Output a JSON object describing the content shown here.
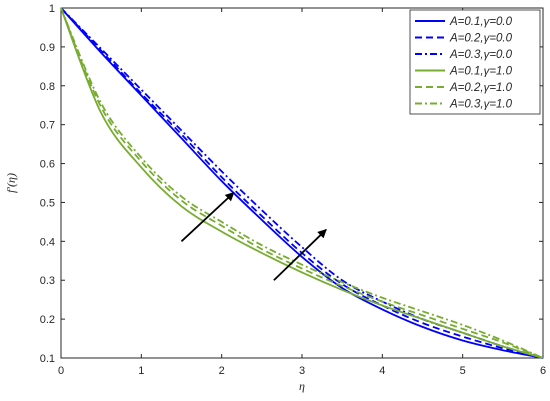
{
  "chart_data": {
    "type": "line",
    "xlabel": "η",
    "ylabel": "f′(η)",
    "xlim": [
      0,
      6
    ],
    "ylim": [
      0.1,
      1
    ],
    "x_ticks": [
      "0",
      "1",
      "2",
      "3",
      "4",
      "5",
      "6"
    ],
    "y_ticks": [
      "0.1",
      "0.2",
      "0.3",
      "0.4",
      "0.5",
      "0.6",
      "0.7",
      "0.8",
      "0.9",
      "1"
    ],
    "grid": false,
    "legend_position": "top-right",
    "x": [
      0,
      0.5,
      1,
      1.5,
      2,
      2.5,
      3,
      3.5,
      4,
      4.5,
      5,
      5.5,
      6
    ],
    "series": [
      {
        "name": "A=0.1,γ=0.0",
        "color": "#0000ff",
        "dash": "solid",
        "values": [
          1.0,
          0.885,
          0.775,
          0.665,
          0.555,
          0.455,
          0.36,
          0.28,
          0.225,
          0.18,
          0.145,
          0.12,
          0.1
        ]
      },
      {
        "name": "A=0.2,γ=0.0",
        "color": "#0000ff",
        "dash": "dashed",
        "values": [
          1.0,
          0.89,
          0.78,
          0.675,
          0.565,
          0.465,
          0.37,
          0.29,
          0.235,
          0.19,
          0.155,
          0.125,
          0.1
        ]
      },
      {
        "name": "A=0.3,γ=0.0",
        "color": "#0000ff",
        "dash": "dashdot",
        "values": [
          1.0,
          0.895,
          0.79,
          0.685,
          0.58,
          0.48,
          0.385,
          0.3,
          0.245,
          0.2,
          0.165,
          0.13,
          0.1
        ]
      },
      {
        "name": "A=0.1,γ=1.0",
        "color": "#77ac30",
        "dash": "solid",
        "values": [
          1.0,
          0.73,
          0.59,
          0.49,
          0.425,
          0.37,
          0.32,
          0.275,
          0.235,
          0.2,
          0.165,
          0.13,
          0.1
        ]
      },
      {
        "name": "A=0.2,γ=1.0",
        "color": "#77ac30",
        "dash": "dashed",
        "values": [
          1.0,
          0.745,
          0.605,
          0.505,
          0.44,
          0.38,
          0.33,
          0.285,
          0.245,
          0.21,
          0.175,
          0.14,
          0.1
        ]
      },
      {
        "name": "A=0.3,γ=1.0",
        "color": "#77ac30",
        "dash": "dashdot",
        "values": [
          1.0,
          0.755,
          0.615,
          0.515,
          0.45,
          0.39,
          0.34,
          0.295,
          0.255,
          0.22,
          0.185,
          0.145,
          0.1
        ]
      }
    ],
    "annotations": [
      {
        "type": "arrow",
        "from": [
          1.5,
          0.4
        ],
        "to": [
          2.15,
          0.525
        ]
      },
      {
        "type": "arrow",
        "from": [
          2.65,
          0.3
        ],
        "to": [
          3.3,
          0.43
        ]
      }
    ]
  }
}
